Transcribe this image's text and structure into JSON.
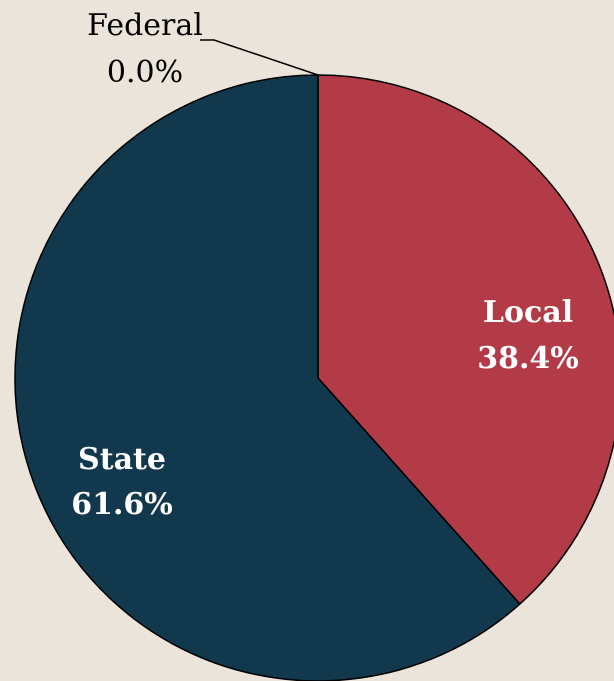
{
  "chart_data": {
    "type": "pie",
    "categories": [
      "Federal",
      "Local",
      "State"
    ],
    "values": [
      0.0,
      38.4,
      61.6
    ],
    "value_labels": [
      "0.0%",
      "38.4%",
      "61.6%"
    ],
    "colors": [
      "#7a8a96",
      "#b33a47",
      "#12384e"
    ]
  }
}
